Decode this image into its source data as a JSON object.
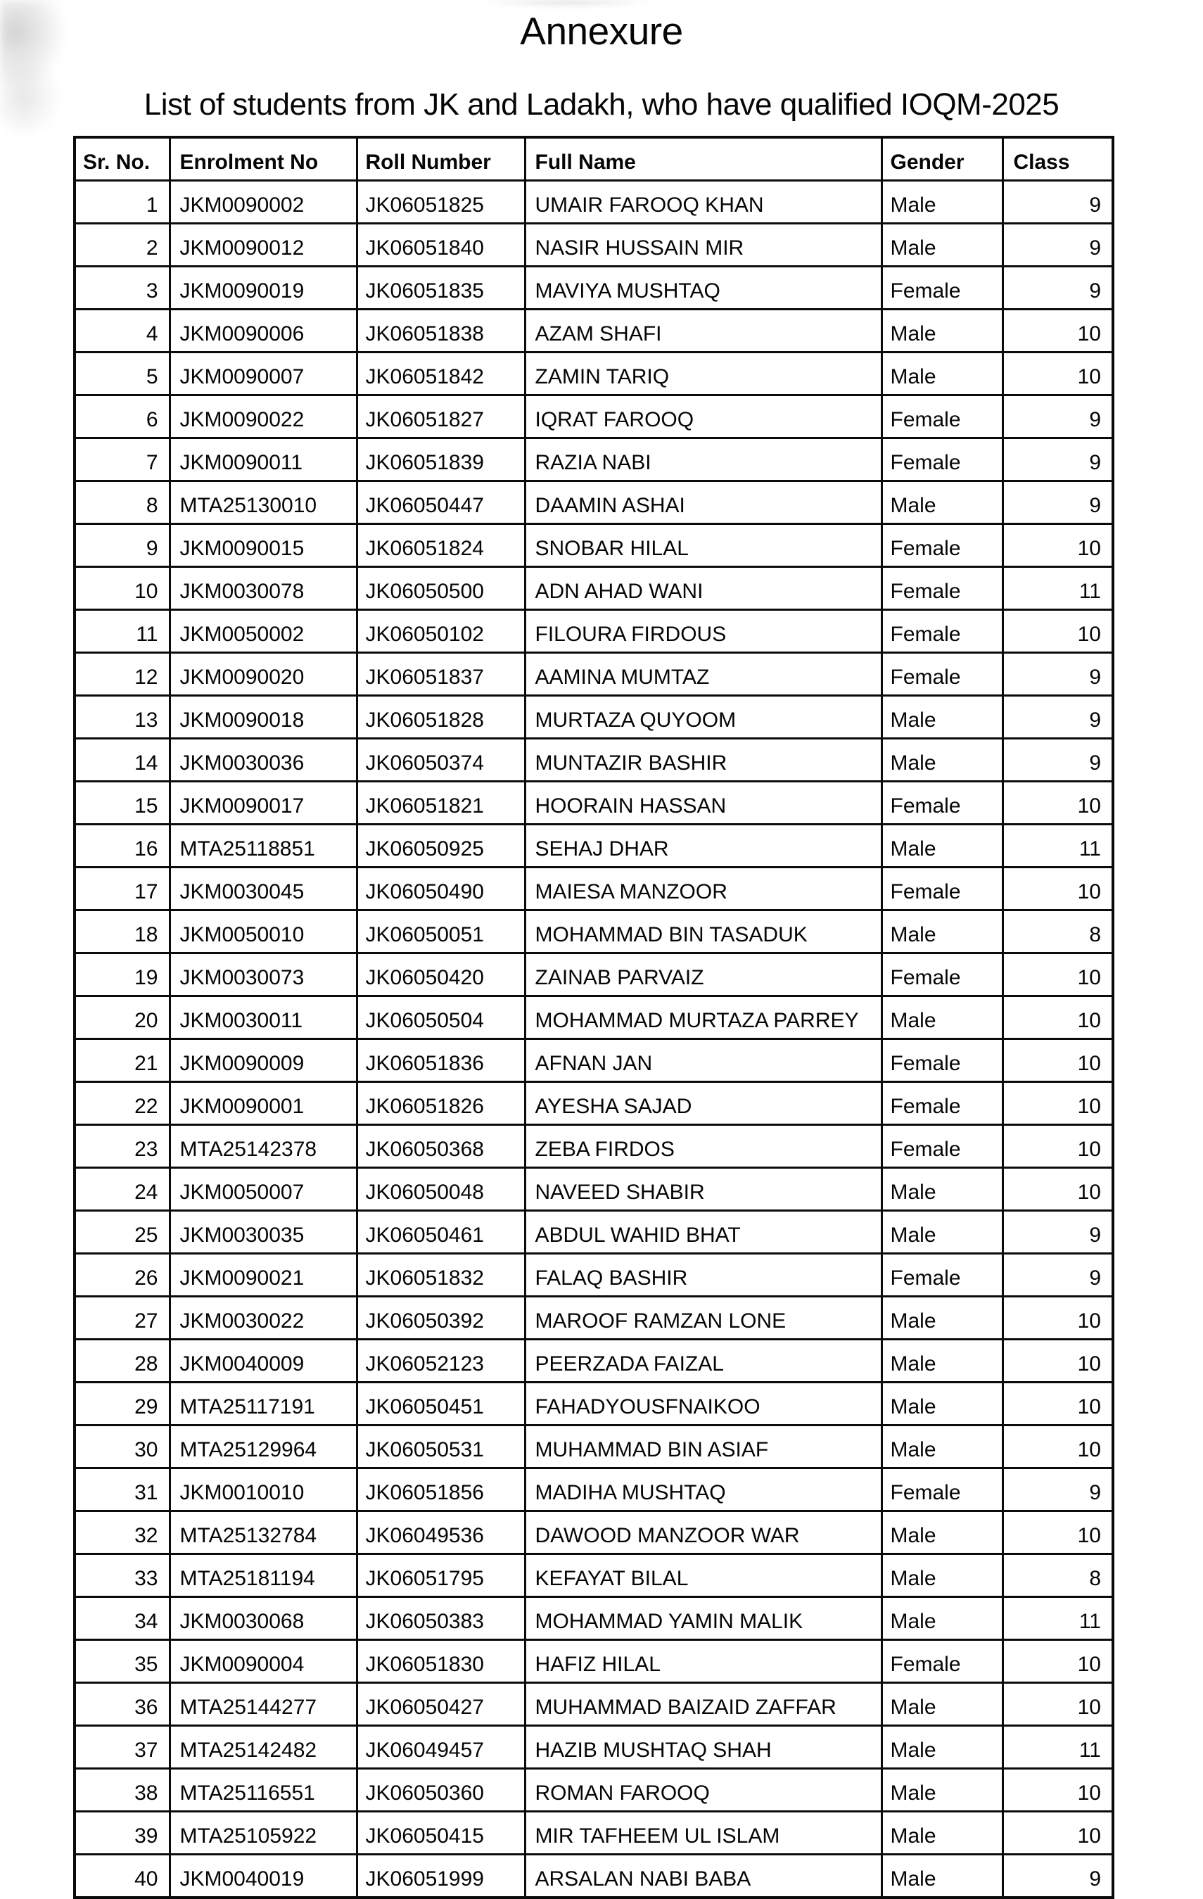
{
  "page": {
    "title": "Annexure",
    "subtitle": "List of students from JK and Ladakh, who have qualified IOQM-2025"
  },
  "colors": {
    "background": "#ffffff",
    "text": "#060606",
    "border": "#0b0b0b"
  },
  "table": {
    "headers": [
      "Sr. No.",
      "Enrolment No",
      "Roll Number",
      "Full Name",
      "Gender",
      "Class"
    ],
    "rows": [
      {
        "sr": "1",
        "enrolment": "JKM0090002",
        "roll": "JK06051825",
        "name": "UMAIR FAROOQ KHAN",
        "gender": "Male",
        "class": "9"
      },
      {
        "sr": "2",
        "enrolment": "JKM0090012",
        "roll": "JK06051840",
        "name": "NASIR HUSSAIN MIR",
        "gender": "Male",
        "class": "9"
      },
      {
        "sr": "3",
        "enrolment": "JKM0090019",
        "roll": "JK06051835",
        "name": "MAVIYA MUSHTAQ",
        "gender": "Female",
        "class": "9"
      },
      {
        "sr": "4",
        "enrolment": "JKM0090006",
        "roll": "JK06051838",
        "name": "AZAM SHAFI",
        "gender": "Male",
        "class": "10"
      },
      {
        "sr": "5",
        "enrolment": "JKM0090007",
        "roll": "JK06051842",
        "name": "ZAMIN TARIQ",
        "gender": "Male",
        "class": "10"
      },
      {
        "sr": "6",
        "enrolment": "JKM0090022",
        "roll": "JK06051827",
        "name": "IQRAT FAROOQ",
        "gender": "Female",
        "class": "9"
      },
      {
        "sr": "7",
        "enrolment": "JKM0090011",
        "roll": "JK06051839",
        "name": "RAZIA NABI",
        "gender": "Female",
        "class": "9"
      },
      {
        "sr": "8",
        "enrolment": "MTA25130010",
        "roll": "JK06050447",
        "name": "DAAMIN ASHAI",
        "gender": "Male",
        "class": "9"
      },
      {
        "sr": "9",
        "enrolment": "JKM0090015",
        "roll": "JK06051824",
        "name": "SNOBAR HILAL",
        "gender": "Female",
        "class": "10"
      },
      {
        "sr": "10",
        "enrolment": "JKM0030078",
        "roll": "JK06050500",
        "name": "ADN AHAD WANI",
        "gender": "Female",
        "class": "11"
      },
      {
        "sr": "11",
        "enrolment": "JKM0050002",
        "roll": "JK06050102",
        "name": "FILOURA FIRDOUS",
        "gender": "Female",
        "class": "10"
      },
      {
        "sr": "12",
        "enrolment": "JKM0090020",
        "roll": "JK06051837",
        "name": "AAMINA MUMTAZ",
        "gender": "Female",
        "class": "9"
      },
      {
        "sr": "13",
        "enrolment": "JKM0090018",
        "roll": "JK06051828",
        "name": "MURTAZA QUYOOM",
        "gender": "Male",
        "class": "9"
      },
      {
        "sr": "14",
        "enrolment": "JKM0030036",
        "roll": "JK06050374",
        "name": "MUNTAZIR BASHIR",
        "gender": "Male",
        "class": "9"
      },
      {
        "sr": "15",
        "enrolment": "JKM0090017",
        "roll": "JK06051821",
        "name": "HOORAIN HASSAN",
        "gender": "Female",
        "class": "10"
      },
      {
        "sr": "16",
        "enrolment": "MTA25118851",
        "roll": "JK06050925",
        "name": "SEHAJ DHAR",
        "gender": "Male",
        "class": "11"
      },
      {
        "sr": "17",
        "enrolment": "JKM0030045",
        "roll": "JK06050490",
        "name": "MAIESA MANZOOR",
        "gender": "Female",
        "class": "10"
      },
      {
        "sr": "18",
        "enrolment": "JKM0050010",
        "roll": "JK06050051",
        "name": "MOHAMMAD BIN TASADUK",
        "gender": "Male",
        "class": "8"
      },
      {
        "sr": "19",
        "enrolment": "JKM0030073",
        "roll": "JK06050420",
        "name": "ZAINAB PARVAIZ",
        "gender": "Female",
        "class": "10"
      },
      {
        "sr": "20",
        "enrolment": "JKM0030011",
        "roll": "JK06050504",
        "name": "MOHAMMAD MURTAZA PARREY",
        "gender": "Male",
        "class": "10"
      },
      {
        "sr": "21",
        "enrolment": "JKM0090009",
        "roll": "JK06051836",
        "name": "AFNAN JAN",
        "gender": "Female",
        "class": "10"
      },
      {
        "sr": "22",
        "enrolment": "JKM0090001",
        "roll": "JK06051826",
        "name": "AYESHA SAJAD",
        "gender": "Female",
        "class": "10"
      },
      {
        "sr": "23",
        "enrolment": "MTA25142378",
        "roll": "JK06050368",
        "name": "ZEBA FIRDOS",
        "gender": "Female",
        "class": "10"
      },
      {
        "sr": "24",
        "enrolment": "JKM0050007",
        "roll": "JK06050048",
        "name": "NAVEED SHABIR",
        "gender": "Male",
        "class": "10"
      },
      {
        "sr": "25",
        "enrolment": "JKM0030035",
        "roll": "JK06050461",
        "name": "ABDUL WAHID BHAT",
        "gender": "Male",
        "class": "9"
      },
      {
        "sr": "26",
        "enrolment": "JKM0090021",
        "roll": "JK06051832",
        "name": "FALAQ BASHIR",
        "gender": "Female",
        "class": "9"
      },
      {
        "sr": "27",
        "enrolment": "JKM0030022",
        "roll": "JK06050392",
        "name": "MAROOF RAMZAN LONE",
        "gender": "Male",
        "class": "10"
      },
      {
        "sr": "28",
        "enrolment": "JKM0040009",
        "roll": "JK06052123",
        "name": "PEERZADA FAIZAL",
        "gender": "Male",
        "class": "10"
      },
      {
        "sr": "29",
        "enrolment": "MTA25117191",
        "roll": "JK06050451",
        "name": "FAHADYOUSFNAIKOO",
        "gender": "Male",
        "class": "10"
      },
      {
        "sr": "30",
        "enrolment": "MTA25129964",
        "roll": "JK06050531",
        "name": "MUHAMMAD BIN ASIAF",
        "gender": "Male",
        "class": "10"
      },
      {
        "sr": "31",
        "enrolment": "JKM0010010",
        "roll": "JK06051856",
        "name": "MADIHA MUSHTAQ",
        "gender": "Female",
        "class": "9"
      },
      {
        "sr": "32",
        "enrolment": "MTA25132784",
        "roll": "JK06049536",
        "name": "DAWOOD MANZOOR WAR",
        "gender": "Male",
        "class": "10"
      },
      {
        "sr": "33",
        "enrolment": "MTA25181194",
        "roll": "JK06051795",
        "name": "KEFAYAT BILAL",
        "gender": "Male",
        "class": "8"
      },
      {
        "sr": "34",
        "enrolment": "JKM0030068",
        "roll": "JK06050383",
        "name": "MOHAMMAD YAMIN MALIK",
        "gender": "Male",
        "class": "11"
      },
      {
        "sr": "35",
        "enrolment": "JKM0090004",
        "roll": "JK06051830",
        "name": "HAFIZ HILAL",
        "gender": "Female",
        "class": "10"
      },
      {
        "sr": "36",
        "enrolment": "MTA25144277",
        "roll": "JK06050427",
        "name": "MUHAMMAD BAIZAID ZAFFAR",
        "gender": "Male",
        "class": "10"
      },
      {
        "sr": "37",
        "enrolment": "MTA25142482",
        "roll": "JK06049457",
        "name": "HAZIB MUSHTAQ SHAH",
        "gender": "Male",
        "class": "11"
      },
      {
        "sr": "38",
        "enrolment": "MTA25116551",
        "roll": "JK06050360",
        "name": "ROMAN FAROOQ",
        "gender": "Male",
        "class": "10"
      },
      {
        "sr": "39",
        "enrolment": "MTA25105922",
        "roll": "JK06050415",
        "name": "MIR TAFHEEM UL ISLAM",
        "gender": "Male",
        "class": "10"
      },
      {
        "sr": "40",
        "enrolment": "JKM0040019",
        "roll": "JK06051999",
        "name": "ARSALAN NABI BABA",
        "gender": "Male",
        "class": "9"
      }
    ]
  }
}
